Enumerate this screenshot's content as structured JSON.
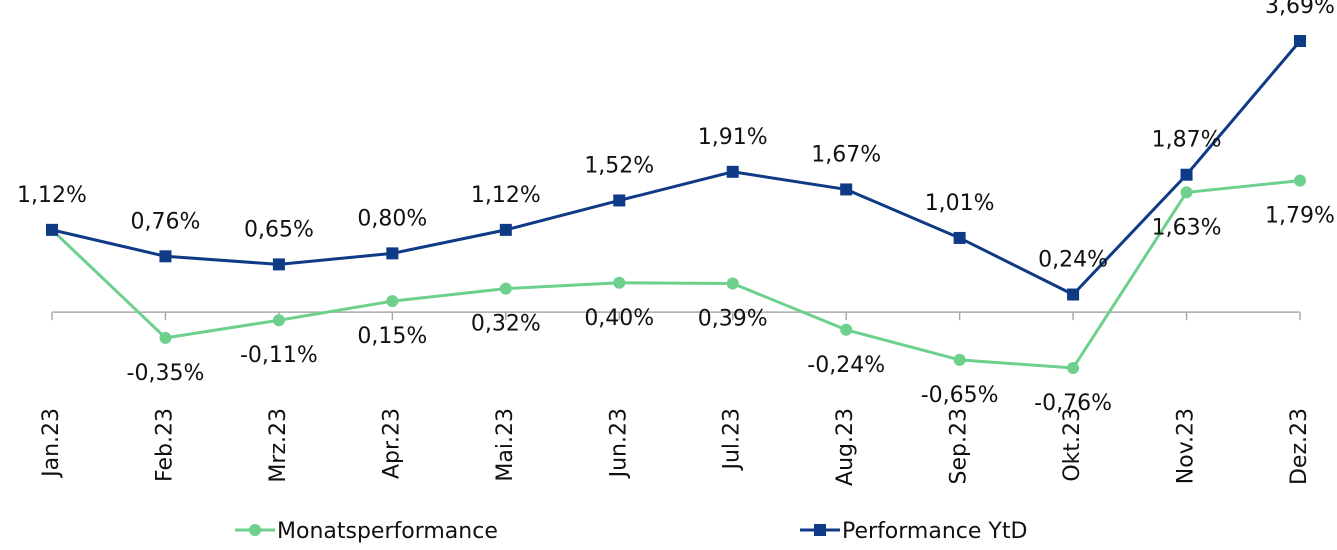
{
  "chart_data": {
    "type": "line",
    "categories": [
      "Jan.23",
      "Feb.23",
      "Mrz.23",
      "Apr.23",
      "Mai.23",
      "Jun.23",
      "Jul.23",
      "Aug.23",
      "Sep.23",
      "Okt.23",
      "Nov.23",
      "Dez.23"
    ],
    "series": [
      {
        "name": "Monatsperformance",
        "color": "#6dd08d",
        "marker": "circle",
        "values": [
          1.12,
          -0.35,
          -0.11,
          0.15,
          0.32,
          0.4,
          0.39,
          -0.24,
          -0.65,
          -0.76,
          1.63,
          1.79
        ],
        "value_labels": [
          null,
          "-0,35%",
          "-0,11%",
          "0,15%",
          "0,32%",
          "0,40%",
          "0,39%",
          "-0,24%",
          "-0,65%",
          "-0,76%",
          "1,63%",
          "1,79%"
        ]
      },
      {
        "name": "Performance YtD",
        "color": "#0f3a85",
        "marker": "square",
        "values": [
          1.12,
          0.76,
          0.65,
          0.8,
          1.12,
          1.52,
          1.91,
          1.67,
          1.01,
          0.24,
          1.87,
          3.69
        ],
        "value_labels": [
          "1,12%",
          "0,76%",
          "0,65%",
          "0,80%",
          "1,12%",
          "1,52%",
          "1,91%",
          "1,67%",
          "1,01%",
          "0,24%",
          "1,87%",
          "3,69%"
        ]
      }
    ]
  }
}
